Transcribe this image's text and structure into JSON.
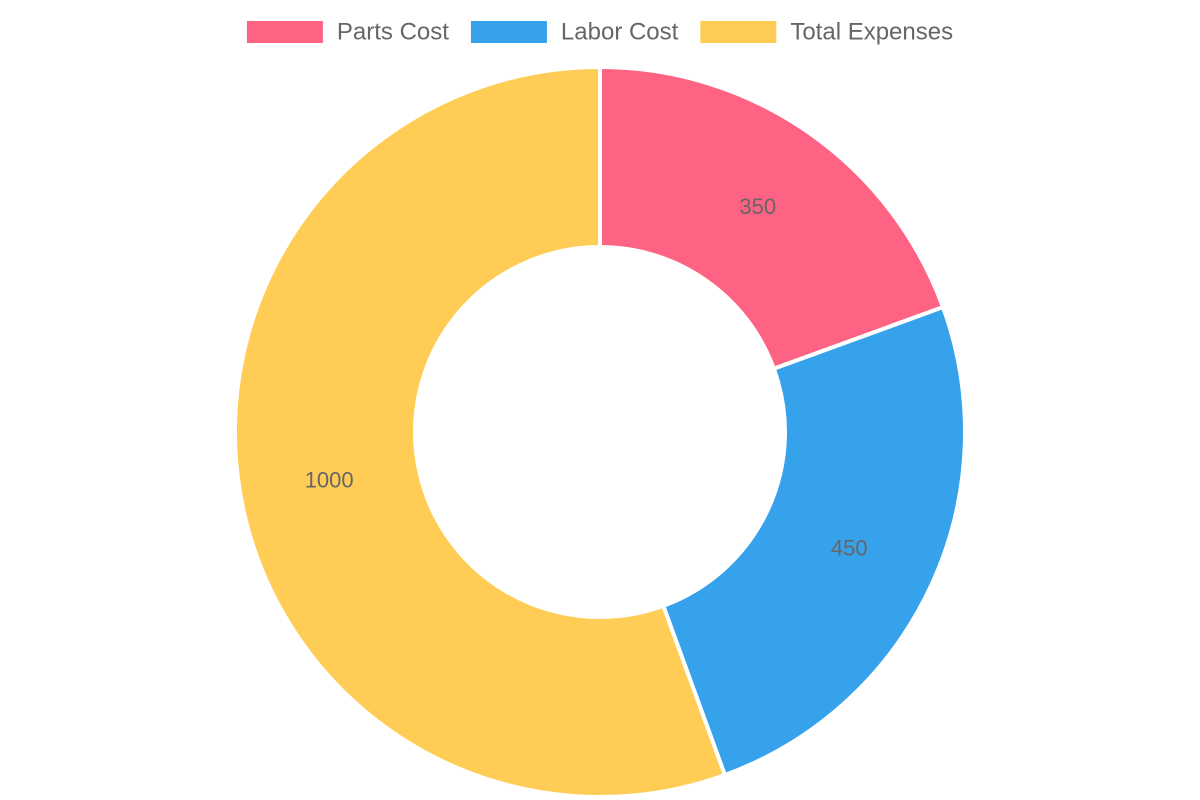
{
  "chart_data": {
    "type": "pie",
    "variant": "doughnut",
    "legend_position": "top",
    "categories": [
      "Parts Cost",
      "Labor Cost",
      "Total Expenses"
    ],
    "values": [
      350,
      450,
      1000
    ],
    "data_labels": [
      "350",
      "450",
      "1000"
    ],
    "colors": [
      "#ff6384",
      "#36a2eb",
      "#ffcd56"
    ]
  }
}
